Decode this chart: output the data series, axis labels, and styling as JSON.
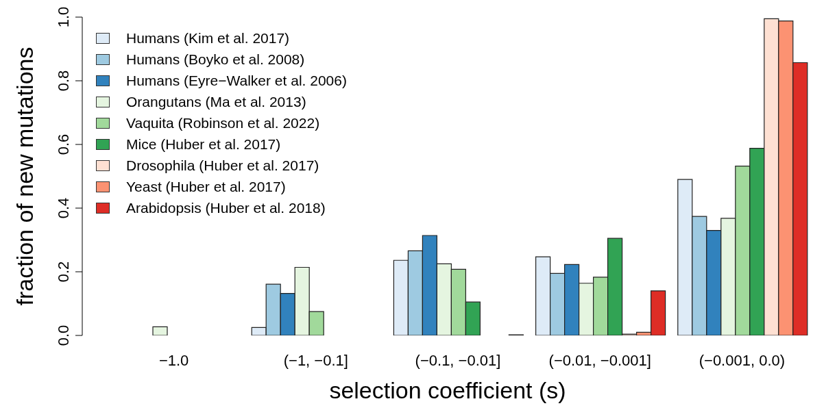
{
  "chart_data": {
    "type": "bar",
    "xlabel": "selection coefficient (s)",
    "ylabel": "fraction of new mutations",
    "categories": [
      "−1.0",
      "(−1, −0.1]",
      "(−0.1, −0.01]",
      "(−0.01, −0.001]",
      "(−0.001, 0.0)"
    ],
    "series": [
      {
        "name": "Humans (Kim et al. 2017)",
        "color": "#deebf7",
        "values": [
          0,
          0.025,
          0.236,
          0.247,
          0.49
        ]
      },
      {
        "name": "Humans (Boyko et al. 2008)",
        "color": "#9ecae1",
        "values": [
          0,
          0.161,
          0.266,
          0.195,
          0.374
        ]
      },
      {
        "name": "Humans (Eyre−Walker et al. 2006)",
        "color": "#3182bd",
        "values": [
          0,
          0.132,
          0.314,
          0.223,
          0.33
        ]
      },
      {
        "name": "Orangutans (Ma et al. 2013)",
        "color": "#e5f5e0",
        "values": [
          0.027,
          0.214,
          0.225,
          0.164,
          0.368
        ]
      },
      {
        "name": "Vaquita (Robinson et al. 2022)",
        "color": "#a1d99b",
        "values": [
          0,
          0.075,
          0.208,
          0.183,
          0.532
        ]
      },
      {
        "name": "Mice (Huber et al. 2017)",
        "color": "#31a354",
        "values": [
          0,
          0,
          0.105,
          0.305,
          0.588
        ]
      },
      {
        "name": "Drosophila (Huber et al. 2017)",
        "color": "#fee0d2",
        "values": [
          0,
          0,
          0,
          0.004,
          0.995
        ]
      },
      {
        "name": "Yeast (Huber et al. 2017)",
        "color": "#fc9272",
        "values": [
          0,
          0,
          0,
          0.01,
          0.988
        ]
      },
      {
        "name": "Arabidopsis (Huber et al. 2018)",
        "color": "#de2d26",
        "values": [
          0,
          0,
          0.002,
          0.14,
          0.857
        ]
      }
    ],
    "ylim": [
      0,
      1
    ],
    "yticks": [
      {
        "value": 0,
        "label": "0.0"
      },
      0.2,
      0.4,
      0.6,
      0.8,
      {
        "value": 1,
        "label": "1.0"
      }
    ],
    "grid": false,
    "legend": "top left"
  }
}
